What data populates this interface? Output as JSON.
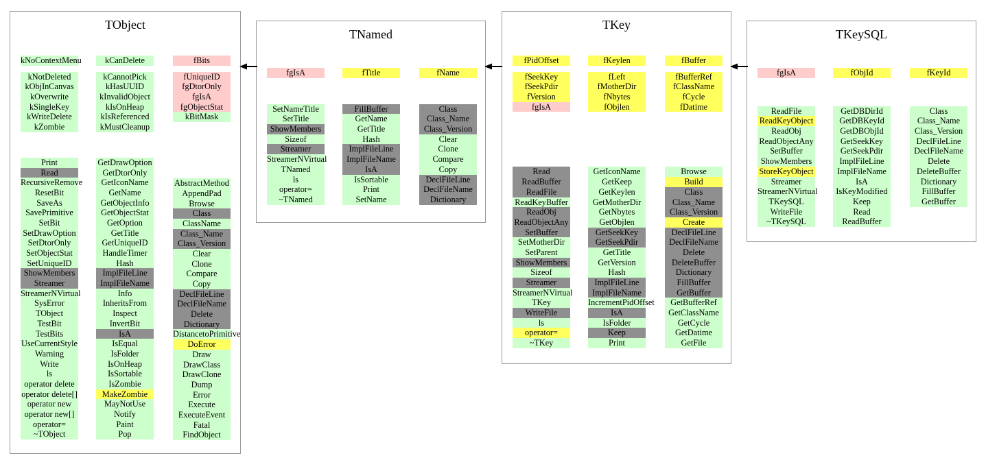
{
  "diagram": {
    "colors": {
      "g": "#ccffcc",
      "x": "#8f8f8f",
      "y": "#ffff5e",
      "p": "#ffcccc"
    },
    "color_meaning": {
      "g": "public-member",
      "x": "overridden-or-hidden-member",
      "y": "highlighted-member",
      "p": "static-data-member"
    },
    "arrows": [
      {
        "from": "TNamed",
        "to": "TObject",
        "type": "inherits"
      },
      {
        "from": "TKey",
        "to": "TNamed",
        "type": "inherits"
      },
      {
        "from": "TKeySQL",
        "to": "TKey",
        "type": "inherits"
      }
    ],
    "classes": [
      {
        "title": "TObject",
        "columns": [
          [
            "g:kNoContextMenu",
            "#9",
            "g:kNotDeleted",
            "g:kObjInCanvas",
            "g:kOverwrite",
            "g:kSingleKey",
            "g:kWriteDelete",
            "g:kZombie",
            "#37",
            "g:Print",
            "x:Read",
            "g:RecursiveRemove",
            "g:ResetBit",
            "g:SaveAs",
            "g:SavePrimitive",
            "g:SetBit",
            "g:SetDrawOption",
            "g:SetDtorOnly",
            "g:SetObjectStat",
            "g:SetUniqueID",
            "x:ShowMembers",
            "x:Streamer",
            "g:StreamerNVirtual",
            "g:SysError",
            "g:TObject",
            "g:TestBit",
            "g:TestBits",
            "g:UseCurrentStyle",
            "g:Warning",
            "g:Write",
            "g:ls",
            "g:operator delete",
            "g:operator delete[]",
            "g:operator new",
            "g:operator new[]",
            "g:operator=",
            "g:~TObject"
          ],
          [
            "g:kCanDelete",
            "#9",
            "g:kCannotPick",
            "g:kHasUUID",
            "g:kInvalidObject",
            "g:kIsOnHeap",
            "g:kIsReferenced",
            "g:kMustCleanup",
            "#37",
            "g:GetDrawOption",
            "g:GetDtorOnly",
            "g:GetIconName",
            "g:GetName",
            "g:GetObjectInfo",
            "g:GetObjectStat",
            "g:GetOption",
            "g:GetTitle",
            "g:GetUniqueID",
            "g:HandleTimer",
            "g:Hash",
            "x:ImplFileLine",
            "x:ImplFileName",
            "g:Info",
            "g:InheritsFrom",
            "g:Inspect",
            "g:InvertBit",
            "x:IsA",
            "g:IsEqual",
            "g:IsFolder",
            "g:IsOnHeap",
            "g:IsSortable",
            "g:IsZombie",
            "y:MakeZombie",
            "g:MayNotUse",
            "g:Notify",
            "g:Paint",
            "g:Pop"
          ],
          [
            "p:fBits",
            "#9",
            "p:fUniqueID",
            "p:fgDtorOnly",
            "p:fgIsA",
            "p:fgObjectStat",
            "g:kBitMask",
            "#82",
            "g:AbstractMethod",
            "g:AppendPad",
            "g:Browse",
            "x:Class",
            "g:ClassName",
            "x:Class_Name",
            "x:Class_Version",
            "g:Clear",
            "g:Clone",
            "g:Compare",
            "g:Copy",
            "x:DeclFileLine",
            "x:DeclFileName",
            "x:Delete",
            "x:Dictionary",
            "g:DistancetoPrimitive",
            "y:DoError",
            "g:Draw",
            "g:DrawClass",
            "g:DrawClone",
            "g:Dump",
            "g:Error",
            "g:Execute",
            "g:ExecuteEvent",
            "g:Fatal",
            "g:FindObject"
          ]
        ]
      },
      {
        "title": "TNamed",
        "columns": [
          [
            "p:fgIsA",
            "#38",
            "g:SetNameTitle",
            "g:SetTitle",
            "x:ShowMembers",
            "g:Sizeof",
            "x:Streamer",
            "g:StreamerNVirtual",
            "g:TNamed",
            "g:ls",
            "g:operator=",
            "g:~TNamed"
          ],
          [
            "y:fTitle",
            "#38",
            "x:FillBuffer",
            "g:GetName",
            "g:GetTitle",
            "g:Hash",
            "x:ImplFileLine",
            "x:ImplFileName",
            "x:IsA",
            "g:IsSortable",
            "g:Print",
            "g:SetName"
          ],
          [
            "y:fName",
            "#38",
            "x:Class",
            "x:Class_Name",
            "x:Class_Version",
            "g:Clear",
            "g:Clone",
            "g:Compare",
            "g:Copy",
            "x:DeclFileLine",
            "x:DeclFileName",
            "x:Dictionary"
          ]
        ]
      },
      {
        "title": "TKey",
        "columns": [
          [
            "y:fPidOffset",
            "#9",
            "y:fSeekKey",
            "y:fSeekPdir",
            "y:fVersion",
            "p:fgIsA",
            "#80",
            "x:Read",
            "x:ReadBuffer",
            "x:ReadFile",
            "g:ReadKeyBuffer",
            "x:ReadObj",
            "x:ReadObjectAny",
            "x:SetBuffer",
            "g:SetMotherDir",
            "g:SetParent",
            "x:ShowMembers",
            "g:Sizeof",
            "x:Streamer",
            "g:StreamerNVirtual",
            "g:TKey",
            "x:WriteFile",
            "g:ls",
            "y:operator=",
            "g:~TKey"
          ],
          [
            "y:fKeylen",
            "#9",
            "y:fLeft",
            "y:fMotherDir",
            "y:fNbytes",
            "y:fObjlen",
            "#80",
            "g:GetIconName",
            "g:GetKeep",
            "g:GetKeylen",
            "g:GetMotherDir",
            "g:GetNbytes",
            "g:GetObjlen",
            "x:GetSeekKey",
            "x:GetSeekPdir",
            "g:GetTitle",
            "g:GetVersion",
            "g:Hash",
            "x:ImplFileLine",
            "x:ImplFileName",
            "g:IncrementPidOffset",
            "x:IsA",
            "g:IsFolder",
            "x:Keep",
            "g:Print"
          ],
          [
            "y:fBuffer",
            "#9",
            "y:fBufferRef",
            "y:fClassName",
            "y:fCycle",
            "y:fDatime",
            "#80",
            "g:Browse",
            "y:Build",
            "x:Class",
            "x:Class_Name",
            "x:Class_Version",
            "y:Create",
            "x:DeclFileLine",
            "x:DeclFileName",
            "x:Delete",
            "x:DeleteBuffer",
            "x:Dictionary",
            "x:FillBuffer",
            "x:GetBuffer",
            "g:GetBufferRef",
            "g:GetClassName",
            "g:GetCycle",
            "g:GetDatime",
            "g:GetFile"
          ]
        ]
      },
      {
        "title": "TKeySQL",
        "columns": [
          [
            "p:fgIsA",
            "#41",
            "g:ReadFile",
            "y:ReadKeyObject",
            "g:ReadObj",
            "g:ReadObjectAny",
            "g:SetBuffer",
            "g:ShowMembers",
            "y:StoreKeyObject",
            "g:Streamer",
            "g:StreamerNVirtual",
            "g:TKeySQL",
            "g:WriteFile",
            "g:~TKeySQL"
          ],
          [
            "y:fObjId",
            "#41",
            "g:GetDBDirId",
            "g:GetDBKeyId",
            "g:GetDBObjId",
            "g:GetSeekKey",
            "g:GetSeekPdir",
            "g:ImplFileLine",
            "g:ImplFileName",
            "g:IsA",
            "g:IsKeyModified",
            "g:Keep",
            "g:Read",
            "g:ReadBuffer"
          ],
          [
            "y:fKeyId",
            "#41",
            "g:Class",
            "g:Class_Name",
            "g:Class_Version",
            "g:DeclFileLine",
            "g:DeclFileName",
            "g:Delete",
            "g:DeleteBuffer",
            "g:Dictionary",
            "g:FillBuffer",
            "g:GetBuffer"
          ]
        ]
      }
    ]
  }
}
